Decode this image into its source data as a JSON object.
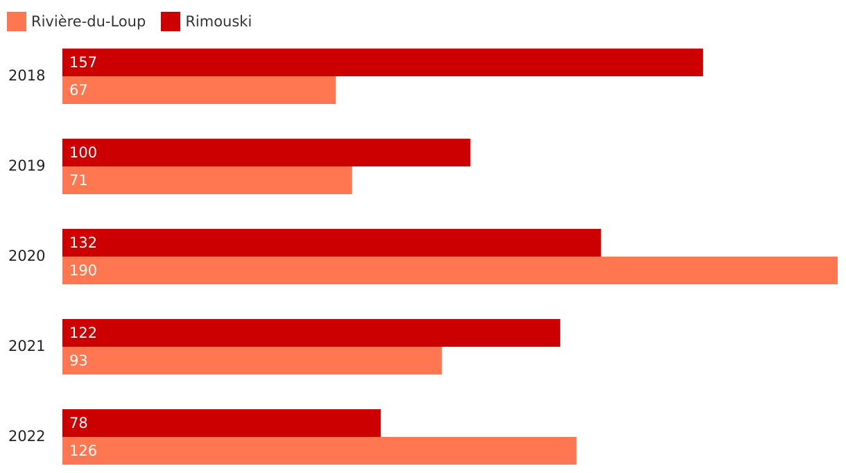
{
  "chart_data": {
    "type": "bar",
    "orientation": "horizontal",
    "categories": [
      "2018",
      "2019",
      "2020",
      "2021",
      "2022"
    ],
    "series": [
      {
        "name": "Rimouski",
        "color": "#cc0000",
        "values": [
          157,
          100,
          132,
          122,
          78
        ]
      },
      {
        "name": "Rivière-du-Loup",
        "color": "#ff7750",
        "values": [
          67,
          71,
          190,
          93,
          126
        ]
      }
    ],
    "legend": [
      {
        "name": "Rivière-du-Loup",
        "color": "#ff7750"
      },
      {
        "name": "Rimouski",
        "color": "#cc0000"
      }
    ],
    "legend_position": "top-left",
    "xlim": [
      0,
      190
    ],
    "grid": false,
    "data_labels": true
  }
}
